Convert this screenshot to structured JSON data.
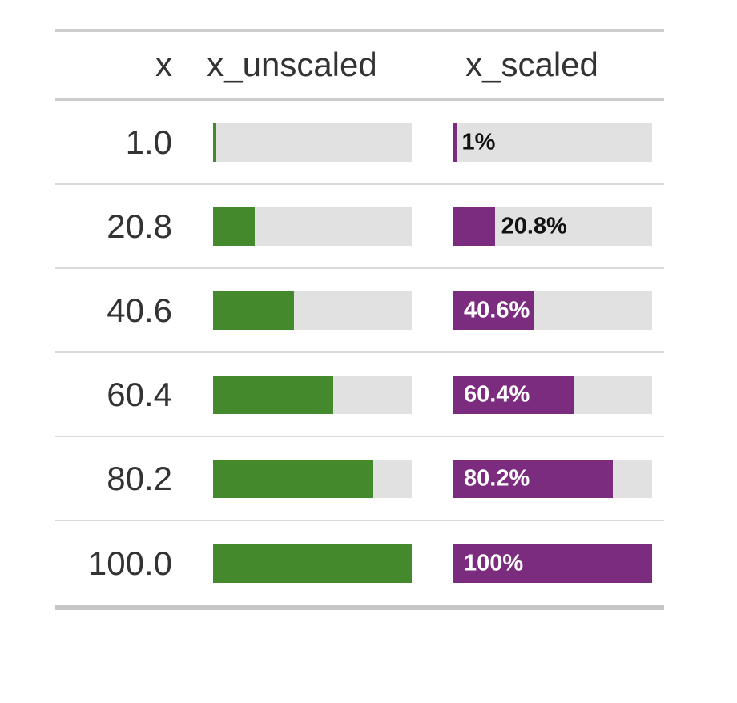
{
  "table": {
    "columns": [
      {
        "label": "x",
        "align": "right"
      },
      {
        "label": "x_unscaled",
        "align": "center"
      },
      {
        "label": "x_scaled",
        "align": "center"
      }
    ],
    "rows": [
      {
        "x": "1.0",
        "unscaled_pct": 1,
        "scaled_pct": 1,
        "label": "1%",
        "label_inside": false
      },
      {
        "x": "20.8",
        "unscaled_pct": 20.8,
        "scaled_pct": 20.8,
        "label": "20.8%",
        "label_inside": false
      },
      {
        "x": "40.6",
        "unscaled_pct": 40.6,
        "scaled_pct": 40.6,
        "label": "40.6%",
        "label_inside": true
      },
      {
        "x": "60.4",
        "unscaled_pct": 60.4,
        "scaled_pct": 60.4,
        "label": "60.4%",
        "label_inside": true
      },
      {
        "x": "80.2",
        "unscaled_pct": 80.2,
        "scaled_pct": 80.2,
        "label": "80.2%",
        "label_inside": true
      },
      {
        "x": "100.0",
        "unscaled_pct": 100,
        "scaled_pct": 100,
        "label": "100%",
        "label_inside": true
      }
    ],
    "colors": {
      "unscaled_fill": "#45892d",
      "scaled_fill": "#7b2c7f",
      "bar_background": "#e1e1e1",
      "text": "#333333",
      "border_heavy": "#cccccc",
      "border_bottom": "#c6c6c6",
      "row_separator": "#d9d9d9",
      "label_outside": "#111111",
      "label_inside": "#ffffff"
    }
  },
  "chart_data": {
    "type": "bar",
    "title": "",
    "xlabel": "",
    "ylabel": "",
    "categories": [
      "1.0",
      "20.8",
      "40.6",
      "60.4",
      "80.2",
      "100.0"
    ],
    "series": [
      {
        "name": "x_unscaled",
        "values": [
          1,
          20.8,
          40.6,
          60.4,
          80.2,
          100
        ],
        "unit": "%",
        "color": "#45892d",
        "labels_shown": false
      },
      {
        "name": "x_scaled",
        "values": [
          1,
          20.8,
          40.6,
          60.4,
          80.2,
          100
        ],
        "unit": "%",
        "color": "#7b2c7f",
        "labels_shown": true,
        "labels": [
          "1%",
          "20.8%",
          "40.6%",
          "60.4%",
          "80.2%",
          "100%"
        ]
      }
    ],
    "xlim": [
      0,
      100
    ],
    "grid": false,
    "legend": "none",
    "orientation": "horizontal",
    "background_track_color": "#e1e1e1"
  }
}
